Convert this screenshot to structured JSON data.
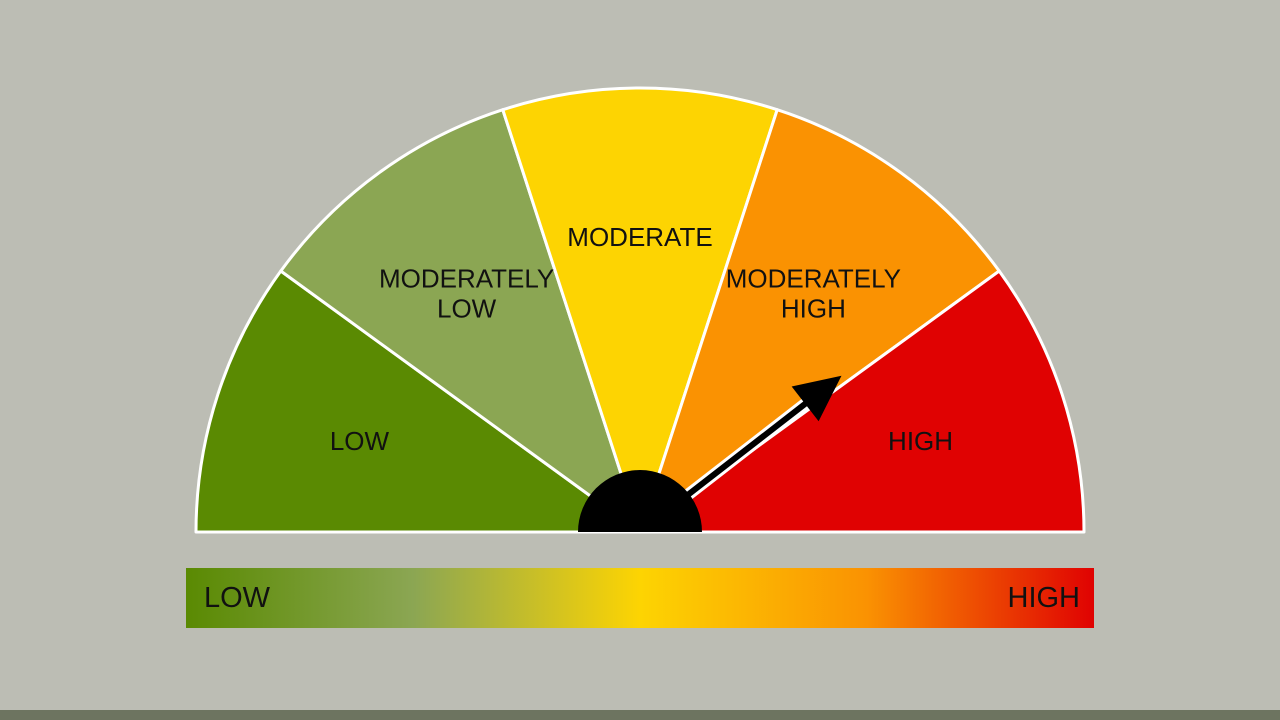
{
  "colors": {
    "background": "#bcbdb4",
    "footer": "#6d7460",
    "outline": "#ffffff",
    "hub": "#000000",
    "needle": "#000000"
  },
  "gauge": {
    "segments": [
      {
        "label": [
          "LOW"
        ],
        "color": "#5a8a02"
      },
      {
        "label": [
          "MODERATELY",
          "LOW"
        ],
        "color": "#8ba653"
      },
      {
        "label": [
          "MODERATE"
        ],
        "color": "#fdd402"
      },
      {
        "label": [
          "MODERATELY",
          "HIGH"
        ],
        "color": "#fa9202"
      },
      {
        "label": [
          "HIGH"
        ],
        "color": "#e00202"
      }
    ],
    "reading_fraction": 0.79
  },
  "scale": {
    "low_label": "LOW",
    "high_label": "HIGH",
    "gradient_colors": [
      "#5a8a02",
      "#8ba653",
      "#fdd402",
      "#fa9202",
      "#e00202"
    ]
  }
}
